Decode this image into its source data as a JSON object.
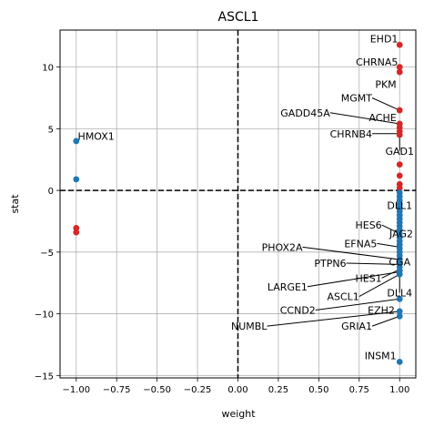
{
  "chart_data": {
    "type": "scatter",
    "title": "ASCL1",
    "xlabel": "weight",
    "ylabel": "stat",
    "xlim": [
      -1.1,
      1.1
    ],
    "ylim": [
      -15.2,
      13.0
    ],
    "xticks": [
      -1.0,
      -0.75,
      -0.5,
      -0.25,
      0.0,
      0.25,
      0.5,
      0.75,
      1.0
    ],
    "xtick_labels": [
      "−1.00",
      "−0.75",
      "−0.50",
      "−0.25",
      "0.00",
      "0.25",
      "0.50",
      "0.75",
      "1.00"
    ],
    "yticks": [
      -15,
      -10,
      -5,
      0,
      5,
      10
    ],
    "ytick_labels": [
      "−15",
      "−10",
      "−5",
      "0",
      "5",
      "10"
    ],
    "grid": true,
    "reference_lines": {
      "x": 0,
      "y": 0,
      "style": "dashed"
    },
    "colors": {
      "positive": "#d62728",
      "negative": "#1f77b4"
    },
    "points": [
      {
        "x": -1.0,
        "y": 4.0,
        "color": "negative"
      },
      {
        "x": -1.0,
        "y": 0.9,
        "color": "negative"
      },
      {
        "x": -1.0,
        "y": -3.05,
        "color": "positive"
      },
      {
        "x": -1.0,
        "y": -3.4,
        "color": "positive"
      },
      {
        "x": 1.0,
        "y": 11.8,
        "color": "positive"
      },
      {
        "x": 1.0,
        "y": 10.0,
        "color": "positive"
      },
      {
        "x": 1.0,
        "y": 9.6,
        "color": "positive"
      },
      {
        "x": 1.0,
        "y": 6.5,
        "color": "positive"
      },
      {
        "x": 1.0,
        "y": 5.4,
        "color": "positive"
      },
      {
        "x": 1.0,
        "y": 5.1,
        "color": "positive"
      },
      {
        "x": 1.0,
        "y": 4.8,
        "color": "positive"
      },
      {
        "x": 1.0,
        "y": 4.5,
        "color": "positive"
      },
      {
        "x": 1.0,
        "y": 2.1,
        "color": "positive"
      },
      {
        "x": 1.0,
        "y": 1.2,
        "color": "positive"
      },
      {
        "x": 1.0,
        "y": 0.5,
        "color": "positive"
      },
      {
        "x": 1.0,
        "y": 0.2,
        "color": "positive"
      },
      {
        "x": 1.0,
        "y": -0.2,
        "color": "negative"
      },
      {
        "x": 1.0,
        "y": -0.5,
        "color": "negative"
      },
      {
        "x": 1.0,
        "y": -0.8,
        "color": "negative"
      },
      {
        "x": 1.0,
        "y": -1.1,
        "color": "negative"
      },
      {
        "x": 1.0,
        "y": -1.4,
        "color": "negative"
      },
      {
        "x": 1.0,
        "y": -1.7,
        "color": "negative"
      },
      {
        "x": 1.0,
        "y": -2.0,
        "color": "negative"
      },
      {
        "x": 1.0,
        "y": -2.3,
        "color": "negative"
      },
      {
        "x": 1.0,
        "y": -2.6,
        "color": "negative"
      },
      {
        "x": 1.0,
        "y": -2.9,
        "color": "negative"
      },
      {
        "x": 1.0,
        "y": -3.2,
        "color": "negative"
      },
      {
        "x": 1.0,
        "y": -3.5,
        "color": "negative"
      },
      {
        "x": 1.0,
        "y": -3.8,
        "color": "negative"
      },
      {
        "x": 1.0,
        "y": -4.1,
        "color": "negative"
      },
      {
        "x": 1.0,
        "y": -4.4,
        "color": "negative"
      },
      {
        "x": 1.0,
        "y": -4.7,
        "color": "negative"
      },
      {
        "x": 1.0,
        "y": -5.0,
        "color": "negative"
      },
      {
        "x": 1.0,
        "y": -5.3,
        "color": "negative"
      },
      {
        "x": 1.0,
        "y": -5.6,
        "color": "negative"
      },
      {
        "x": 1.0,
        "y": -5.9,
        "color": "negative"
      },
      {
        "x": 1.0,
        "y": -6.2,
        "color": "negative"
      },
      {
        "x": 1.0,
        "y": -6.5,
        "color": "negative"
      },
      {
        "x": 1.0,
        "y": -6.8,
        "color": "negative"
      },
      {
        "x": 1.0,
        "y": -8.8,
        "color": "negative"
      },
      {
        "x": 1.0,
        "y": -9.8,
        "color": "negative"
      },
      {
        "x": 1.0,
        "y": -10.2,
        "color": "negative"
      },
      {
        "x": 1.0,
        "y": -13.9,
        "color": "negative"
      }
    ],
    "annotations": [
      {
        "text": "HMOX1",
        "x": -0.99,
        "y": 4.4,
        "px": -0.99,
        "py": 4.0,
        "anchor": "start",
        "leader": false
      },
      {
        "text": "EHD1",
        "x": 0.99,
        "y": 12.3,
        "px": 1.0,
        "py": 11.8,
        "anchor": "end",
        "leader": false
      },
      {
        "text": "CHRNA5",
        "x": 0.99,
        "y": 10.4,
        "px": 1.0,
        "py": 10.0,
        "anchor": "end",
        "leader": false
      },
      {
        "text": "PKM",
        "x": 0.98,
        "y": 8.6,
        "px": 1.0,
        "py": 9.6,
        "anchor": "end",
        "leader": false
      },
      {
        "text": "MGMT",
        "x": 0.83,
        "y": 7.5,
        "px": 1.0,
        "py": 6.5,
        "anchor": "end",
        "leader": true
      },
      {
        "text": "GADD45A",
        "x": 0.57,
        "y": 6.3,
        "px": 1.0,
        "py": 5.4,
        "anchor": "end",
        "leader": true
      },
      {
        "text": "ACHE",
        "x": 0.98,
        "y": 5.9,
        "px": 1.0,
        "py": 5.1,
        "anchor": "end",
        "leader": false
      },
      {
        "text": "CHRNB4",
        "x": 0.83,
        "y": 4.6,
        "px": 1.0,
        "py": 4.6,
        "anchor": "end",
        "leader": true
      },
      {
        "text": "GAD1",
        "x": 1.0,
        "y": 3.2,
        "px": 1.0,
        "py": 4.5,
        "anchor": "middle",
        "leader": true
      },
      {
        "text": "DLL1",
        "x": 1.0,
        "y": -1.2,
        "px": 1.0,
        "py": -0.2,
        "anchor": "middle",
        "leader": true
      },
      {
        "text": "HES6",
        "x": 0.89,
        "y": -2.8,
        "px": 1.0,
        "py": -3.5,
        "anchor": "end",
        "leader": true
      },
      {
        "text": "JAG2",
        "x": 1.01,
        "y": -3.5,
        "px": 1.0,
        "py": -3.8,
        "anchor": "middle",
        "leader": false
      },
      {
        "text": "EFNA5",
        "x": 0.86,
        "y": -4.3,
        "px": 1.0,
        "py": -4.6,
        "anchor": "end",
        "leader": true
      },
      {
        "text": "PHOX2A",
        "x": 0.4,
        "y": -4.6,
        "px": 1.0,
        "py": -5.6,
        "anchor": "end",
        "leader": true
      },
      {
        "text": "CGA",
        "x": 1.0,
        "y": -5.8,
        "px": 1.0,
        "py": -5.9,
        "anchor": "middle",
        "leader": false
      },
      {
        "text": "PTPN6",
        "x": 0.67,
        "y": -5.9,
        "px": 1.0,
        "py": -6.0,
        "anchor": "end",
        "leader": true
      },
      {
        "text": "HES1",
        "x": 0.89,
        "y": -7.1,
        "px": 1.0,
        "py": -6.4,
        "anchor": "end",
        "leader": true
      },
      {
        "text": "LARGE1",
        "x": 0.43,
        "y": -7.8,
        "px": 1.0,
        "py": -6.6,
        "anchor": "end",
        "leader": true
      },
      {
        "text": "ASCL1",
        "x": 0.75,
        "y": -8.6,
        "px": 1.0,
        "py": -6.8,
        "anchor": "end",
        "leader": true
      },
      {
        "text": "DLL4",
        "x": 1.0,
        "y": -8.3,
        "px": 1.0,
        "py": -6.5,
        "anchor": "middle",
        "leader": true
      },
      {
        "text": "CCND2",
        "x": 0.48,
        "y": -9.7,
        "px": 1.0,
        "py": -8.8,
        "anchor": "end",
        "leader": true
      },
      {
        "text": "EZH2",
        "x": 0.97,
        "y": -9.7,
        "px": 1.0,
        "py": -9.8,
        "anchor": "end",
        "leader": false
      },
      {
        "text": "NUMBL",
        "x": 0.18,
        "y": -11.0,
        "px": 1.0,
        "py": -9.8,
        "anchor": "end",
        "leader": true
      },
      {
        "text": "GRIA1",
        "x": 0.83,
        "y": -11.0,
        "px": 1.0,
        "py": -10.2,
        "anchor": "end",
        "leader": true
      },
      {
        "text": "INSM1",
        "x": 0.98,
        "y": -13.4,
        "px": 1.0,
        "py": -13.9,
        "anchor": "end",
        "leader": false
      }
    ]
  }
}
